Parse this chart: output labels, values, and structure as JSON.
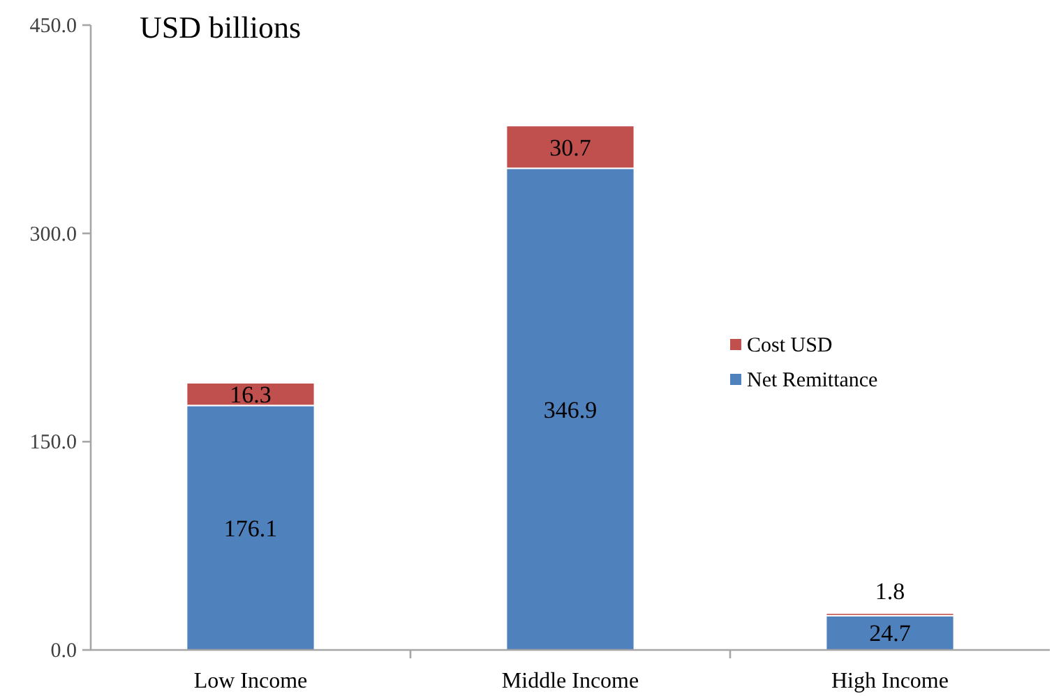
{
  "chart_data": {
    "type": "bar",
    "title": "USD billions",
    "stacked": true,
    "categories": [
      "Low Income",
      "Middle Income",
      "High Income"
    ],
    "series": [
      {
        "name": "Net Remittance",
        "color": "#4f81bd",
        "values": [
          176.1,
          346.9,
          24.7
        ]
      },
      {
        "name": "Cost USD",
        "color": "#c0504d",
        "values": [
          16.3,
          30.7,
          1.8
        ]
      }
    ],
    "ylim": [
      0,
      450
    ],
    "yticks": [
      {
        "value": 0,
        "label": "0.0"
      },
      {
        "value": 150,
        "label": "150.0"
      },
      {
        "value": 300,
        "label": "300.0"
      },
      {
        "value": 450,
        "label": "450.0"
      }
    ],
    "data_labels": true,
    "legend": "right",
    "grid": false
  }
}
